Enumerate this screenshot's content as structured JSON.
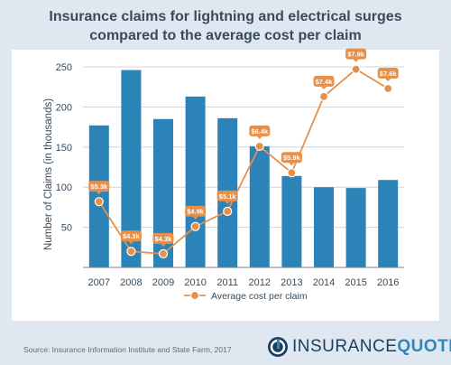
{
  "title_line1": "Insurance claims for lightning and electrical surges",
  "title_line2": "compared to the average cost per claim",
  "source": "Source: Insurance Information Institute and State Farm, 2017",
  "brand": {
    "part1": "INSURANCE",
    "part2": "QUOTES"
  },
  "colors": {
    "bar": "#2c83b8",
    "line": "#e6904a",
    "text": "#3a4a59"
  },
  "chart_data": {
    "type": "bar",
    "title": "Insurance claims for lightning and electrical surges compared to the average cost per claim",
    "categories": [
      "2007",
      "2008",
      "2009",
      "2010",
      "2011",
      "2012",
      "2013",
      "2014",
      "2015",
      "2016"
    ],
    "xlabel": "",
    "ylabel": "Number of Claims (in thousands)",
    "ylim": [
      0,
      250
    ],
    "yticks": [
      50,
      100,
      150,
      200,
      250
    ],
    "grid": true,
    "series": [
      {
        "type": "bar",
        "values": [
          177,
          246,
          185,
          213,
          186,
          151,
          114,
          100,
          99,
          109
        ]
      },
      {
        "name": "Average cost per claim",
        "type": "line",
        "values": [
          5.3,
          4.3,
          4.3,
          4.9,
          5.1,
          6.4,
          5.9,
          7.4,
          7.9,
          7.6
        ],
        "labels": [
          "$5.3k",
          "$4.3k",
          "$4.3k",
          "$4.9k",
          "$5.1k",
          "$6.4k",
          "$5.9k",
          "$7.4k",
          "$7.9k",
          "$7.6k"
        ],
        "plotted_at": [
          82,
          20,
          17,
          51,
          70,
          151,
          118,
          213,
          247,
          223
        ]
      }
    ],
    "legend": {
      "position": "bottom-center",
      "label": "Average cost per claim"
    }
  }
}
